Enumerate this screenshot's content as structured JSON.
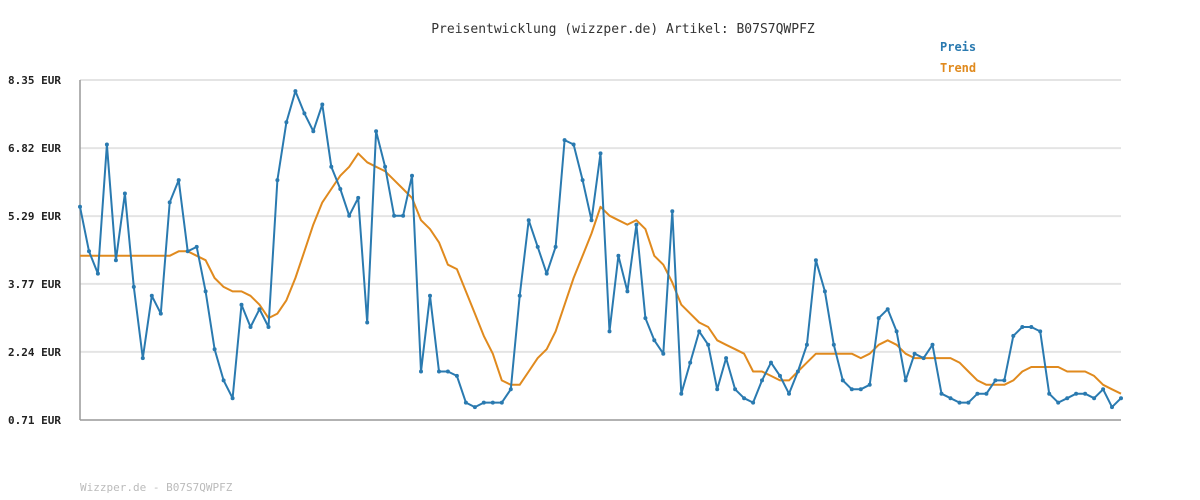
{
  "chart_data": {
    "type": "line",
    "title": "Preisentwicklung (wizzper.de) Artikel: B07S7QWPFZ",
    "footer": "Wizzper.de - B07S7QWPFZ",
    "currency_suffix": "EUR",
    "ylim": [
      0.71,
      8.35
    ],
    "yticks": [
      "8.35 EUR",
      "6.82 EUR",
      "5.29 EUR",
      "3.77 EUR",
      "2.24 EUR",
      "0.71 EUR"
    ],
    "ytick_values": [
      8.35,
      6.82,
      5.29,
      3.77,
      2.24,
      0.71
    ],
    "grid": true,
    "legend_position": "top-right",
    "series": [
      {
        "name": "Preis",
        "color": "#2a7ab0",
        "values": [
          5.5,
          4.5,
          4.0,
          6.9,
          4.3,
          5.8,
          3.7,
          2.1,
          3.5,
          3.1,
          5.6,
          6.1,
          4.5,
          4.6,
          3.6,
          2.3,
          1.6,
          1.2,
          3.3,
          2.8,
          3.2,
          2.8,
          6.1,
          7.4,
          8.1,
          7.6,
          7.2,
          7.8,
          6.4,
          5.9,
          5.3,
          5.7,
          2.9,
          7.2,
          6.4,
          5.3,
          5.3,
          6.2,
          1.8,
          3.5,
          1.8,
          1.8,
          1.7,
          1.1,
          1.0,
          1.1,
          1.1,
          1.1,
          1.4,
          3.5,
          5.2,
          4.6,
          4.0,
          4.6,
          7.0,
          6.9,
          6.1,
          5.2,
          6.7,
          2.7,
          4.4,
          3.6,
          5.1,
          3.0,
          2.5,
          2.2,
          5.4,
          1.3,
          2.0,
          2.7,
          2.4,
          1.4,
          2.1,
          1.4,
          1.2,
          1.1,
          1.6,
          2.0,
          1.7,
          1.3,
          1.8,
          2.4,
          4.3,
          3.6,
          2.4,
          1.6,
          1.4,
          1.4,
          1.5,
          3.0,
          3.2,
          2.7,
          1.6,
          2.2,
          2.1,
          2.4,
          1.3,
          1.2,
          1.1,
          1.1,
          1.3,
          1.3,
          1.6,
          1.6,
          2.6,
          2.8,
          2.8,
          2.7,
          1.3,
          1.1,
          1.2,
          1.3,
          1.3,
          1.2,
          1.4,
          1.0,
          1.2
        ]
      },
      {
        "name": "Trend",
        "color": "#e08a1e",
        "values": [
          4.4,
          4.4,
          4.4,
          4.4,
          4.4,
          4.4,
          4.4,
          4.4,
          4.4,
          4.4,
          4.4,
          4.5,
          4.5,
          4.4,
          4.3,
          3.9,
          3.7,
          3.6,
          3.6,
          3.5,
          3.3,
          3.0,
          3.1,
          3.4,
          3.9,
          4.5,
          5.1,
          5.6,
          5.9,
          6.2,
          6.4,
          6.7,
          6.5,
          6.4,
          6.3,
          6.1,
          5.9,
          5.7,
          5.2,
          5.0,
          4.7,
          4.2,
          4.1,
          3.6,
          3.1,
          2.6,
          2.2,
          1.6,
          1.5,
          1.5,
          1.8,
          2.1,
          2.3,
          2.7,
          3.3,
          3.9,
          4.4,
          4.9,
          5.5,
          5.3,
          5.2,
          5.1,
          5.2,
          5.0,
          4.4,
          4.2,
          3.8,
          3.3,
          3.1,
          2.9,
          2.8,
          2.5,
          2.4,
          2.3,
          2.2,
          1.8,
          1.8,
          1.7,
          1.6,
          1.6,
          1.8,
          2.0,
          2.2,
          2.2,
          2.2,
          2.2,
          2.2,
          2.1,
          2.2,
          2.4,
          2.5,
          2.4,
          2.2,
          2.1,
          2.1,
          2.1,
          2.1,
          2.1,
          2.0,
          1.8,
          1.6,
          1.5,
          1.5,
          1.5,
          1.6,
          1.8,
          1.9,
          1.9,
          1.9,
          1.9,
          1.8,
          1.8,
          1.8,
          1.7,
          1.5,
          1.4,
          1.3
        ]
      }
    ]
  }
}
